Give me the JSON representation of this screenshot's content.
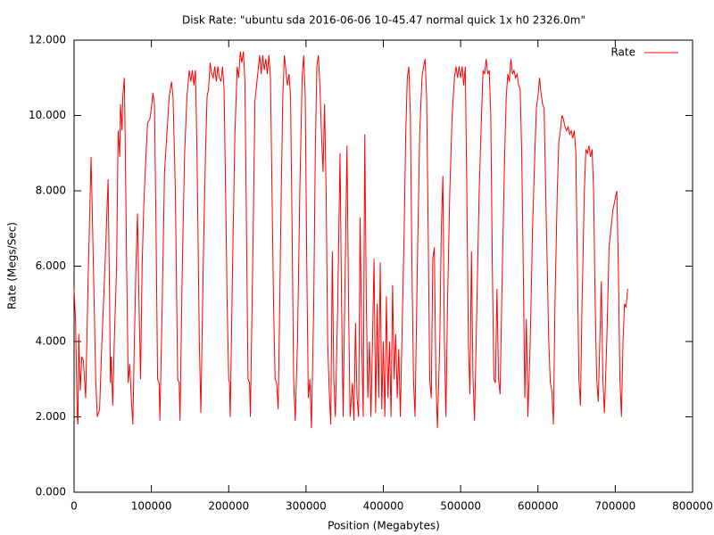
{
  "chart_data": {
    "type": "line",
    "title": "Disk Rate: \"ubuntu sda 2016-06-06 10-45.47 normal quick 1x h0 2326.0m\"",
    "x_label": "Position (Megabytes)",
    "y_label": "Rate (Megs/Sec)",
    "xlim": [
      0,
      800000
    ],
    "xticks": [
      0,
      100000,
      200000,
      300000,
      400000,
      500000,
      600000,
      700000,
      800000
    ],
    "ylim": [
      0,
      12
    ],
    "yticks": [
      {
        "value": 0,
        "label": "0.000"
      },
      {
        "value": 2,
        "label": "2.000"
      },
      {
        "value": 4,
        "label": "4.000"
      },
      {
        "value": 6,
        "label": "6.000"
      },
      {
        "value": 8,
        "label": "8.000"
      },
      {
        "value": 10,
        "label": "10.000"
      },
      {
        "value": 12,
        "label": "12.000"
      }
    ],
    "grid": false,
    "legend": "top-right",
    "x": [
      0,
      2000,
      4000,
      5000,
      6000,
      8000,
      10000,
      12000,
      15000,
      18000,
      22000,
      25000,
      28000,
      30000,
      33000,
      36000,
      40000,
      44000,
      46000,
      47000,
      48000,
      50000,
      52000,
      55000,
      57000,
      59000,
      60000,
      62000,
      63000,
      65000,
      66000,
      68000,
      70000,
      72000,
      74000,
      76000,
      78000,
      80000,
      82000,
      84000,
      86000,
      88000,
      90000,
      92000,
      95000,
      98000,
      100000,
      102000,
      104000,
      106000,
      108000,
      110000,
      111000,
      114000,
      117000,
      120000,
      123000,
      126000,
      128000,
      131000,
      134000,
      136000,
      137000,
      140000,
      143000,
      146000,
      149000,
      151000,
      153000,
      155000,
      157000,
      159000,
      162000,
      164000,
      167000,
      170000,
      172000,
      174000,
      176000,
      178000,
      180000,
      182000,
      184000,
      186000,
      188000,
      190000,
      192000,
      194000,
      196000,
      198000,
      200000,
      201000,
      202000,
      205000,
      208000,
      211000,
      213000,
      215000,
      217000,
      219000,
      221000,
      223000,
      225000,
      227000,
      228000,
      231000,
      234000,
      236000,
      238000,
      240000,
      242000,
      244000,
      246000,
      248000,
      250000,
      252000,
      254000,
      256000,
      258000,
      260000,
      262000,
      264000,
      266000,
      268000,
      270000,
      272000,
      274000,
      276000,
      278000,
      280000,
      282000,
      284000,
      286000,
      289000,
      292000,
      295000,
      297000,
      299000,
      301000,
      303000,
      305000,
      307000,
      310000,
      312000,
      314000,
      316000,
      318000,
      320000,
      322000,
      324000,
      326000,
      328000,
      330000,
      332000,
      334000,
      336000,
      338000,
      341000,
      344000,
      346000,
      348000,
      350000,
      353000,
      355000,
      357000,
      360000,
      362000,
      364000,
      366000,
      368000,
      370000,
      372000,
      374000,
      376000,
      378000,
      380000,
      382000,
      384000,
      386000,
      388000,
      390000,
      392000,
      394000,
      396000,
      398000,
      400000,
      402000,
      404000,
      406000,
      408000,
      410000,
      412000,
      414000,
      416000,
      418000,
      420000,
      422000,
      424000,
      427000,
      429000,
      431000,
      433000,
      435000,
      437000,
      439000,
      441000,
      444000,
      447000,
      450000,
      452000,
      454000,
      456000,
      458000,
      460000,
      462000,
      464000,
      466000,
      468000,
      470000,
      473000,
      475000,
      477000,
      479000,
      481000,
      483000,
      486000,
      489000,
      492000,
      494000,
      496000,
      498000,
      500000,
      502000,
      504000,
      506000,
      508000,
      510000,
      512000,
      514000,
      516000,
      518000,
      521000,
      524000,
      527000,
      529000,
      531000,
      533000,
      535000,
      537000,
      539000,
      541000,
      543000,
      545000,
      547000,
      549000,
      551000,
      554000,
      557000,
      559000,
      561000,
      563000,
      565000,
      567000,
      569000,
      571000,
      573000,
      575000,
      577000,
      579000,
      581000,
      583000,
      585000,
      587000,
      590000,
      593000,
      596000,
      598000,
      600000,
      602000,
      604000,
      606000,
      608000,
      610000,
      612000,
      614000,
      616000,
      618000,
      620000,
      622000,
      625000,
      627000,
      629000,
      631000,
      633000,
      635000,
      637000,
      639000,
      641000,
      643000,
      645000,
      647000,
      649000,
      651000,
      653000,
      655000,
      657000,
      660000,
      662000,
      664000,
      666000,
      668000,
      670000,
      672000,
      674000,
      676000,
      678000,
      680000,
      682000,
      684000,
      686000,
      689000,
      692000,
      697000,
      702000,
      704000,
      706000,
      708000,
      710000,
      712000,
      714000,
      716000
    ],
    "series": [
      {
        "name": "Rate",
        "color": "#ff0000",
        "values": [
          5.4,
          4.5,
          2.0,
          1.8,
          4.2,
          2.7,
          3.6,
          3.5,
          2.5,
          5.5,
          8.9,
          6,
          3,
          2,
          2.2,
          4,
          6,
          8.3,
          5,
          2.9,
          3.6,
          2.3,
          4,
          6,
          9.6,
          8.9,
          10.3,
          9.6,
          10.5,
          11.0,
          9.5,
          6,
          2.9,
          3.4,
          2.5,
          1.8,
          4,
          6,
          7.4,
          5,
          3,
          6,
          7.5,
          8.5,
          9.8,
          9.9,
          10.2,
          10.6,
          10.3,
          7,
          3,
          2.9,
          1.9,
          5,
          8.5,
          9.5,
          10.5,
          10.9,
          10.5,
          8,
          3,
          2.9,
          1.9,
          6,
          9,
          10.5,
          11.2,
          10.9,
          11.2,
          10.8,
          11.2,
          9,
          4,
          2.1,
          6,
          9,
          10.5,
          10.7,
          11.4,
          11.1,
          11.0,
          11.3,
          10.9,
          11.3,
          11.0,
          10.9,
          11.3,
          10.7,
          8,
          5,
          3,
          2.9,
          2.0,
          6,
          9.5,
          11.3,
          11.0,
          11.7,
          11.4,
          11.7,
          10.9,
          7,
          3,
          2.9,
          2.0,
          6,
          10.4,
          10.8,
          11.2,
          11.6,
          11.1,
          11.6,
          11.2,
          11.5,
          11.1,
          11.6,
          11.0,
          8,
          5,
          3,
          2.9,
          2.2,
          5,
          8,
          10.5,
          11.6,
          11.2,
          10.8,
          11.1,
          10.5,
          7,
          3,
          1.9,
          4,
          8,
          11.0,
          11.6,
          10.5,
          6,
          2.5,
          3,
          1.7,
          5,
          9,
          11.3,
          11.6,
          10.8,
          9.5,
          8.5,
          10.3,
          8,
          4,
          2.7,
          1.8,
          6.4,
          3,
          2.0,
          5,
          9,
          5,
          2,
          5,
          9.2,
          5,
          2,
          2.9,
          1.9,
          4.5,
          2.5,
          2,
          7.3,
          4,
          2,
          9.5,
          5,
          2.5,
          4,
          2,
          4,
          6.2,
          2.1,
          5,
          2.5,
          6.1,
          2.2,
          4,
          2,
          5.2,
          2.5,
          4,
          2,
          5.5,
          3,
          4.2,
          2.5,
          3.8,
          2.0,
          4,
          7,
          9.5,
          11.0,
          11.3,
          10,
          6,
          3,
          2,
          6,
          9.5,
          11.0,
          11.3,
          11.5,
          10.5,
          7,
          3,
          2.5,
          6.2,
          6.5,
          3,
          1.7,
          4,
          7,
          8.4,
          4,
          2,
          5,
          8,
          10,
          11.0,
          11.3,
          11.0,
          11.3,
          11.0,
          11.3,
          10.8,
          11.3,
          8,
          4,
          2.6,
          6.4,
          3,
          1.9,
          5,
          8,
          10,
          11.2,
          11.1,
          11.5,
          11.1,
          11.2,
          10,
          6,
          3,
          2.9,
          5.4,
          3,
          2.6,
          6,
          9,
          10.5,
          11.1,
          10.9,
          11.5,
          11.1,
          11.2,
          11.0,
          11.1,
          10.8,
          10.7,
          9,
          6,
          2.5,
          4.6,
          2.0,
          4,
          7,
          9,
          10.2,
          10.5,
          11.0,
          10.6,
          10.3,
          10.2,
          8,
          6,
          4,
          2.9,
          2.7,
          1.8,
          5,
          8,
          9.3,
          9.6,
          10.0,
          9.9,
          9.7,
          9.6,
          9.7,
          9.5,
          9.6,
          9.4,
          9.6,
          9.0,
          6,
          3,
          2.3,
          5,
          8,
          9.1,
          9.0,
          9.2,
          8.9,
          9.1,
          8,
          5,
          3,
          2.4,
          4,
          5.6,
          3,
          2.1,
          4,
          6.5,
          7.5,
          8.0,
          6,
          3,
          2.0,
          4,
          5,
          4.9,
          5.4
        ]
      }
    ]
  }
}
